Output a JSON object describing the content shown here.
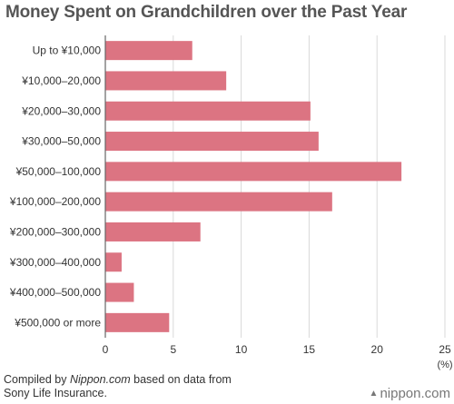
{
  "chart_data": {
    "type": "bar",
    "orientation": "horizontal",
    "title": "Money Spent on Grandchildren over the Past Year",
    "categories": [
      "Up to ¥10,000",
      "¥10,000–20,000",
      "¥20,000–30,000",
      "¥30,000–50,000",
      "¥50,000–100,000",
      "¥100,000–200,000",
      "¥200,000–300,000",
      "¥300,000–400,000",
      "¥400,000–500,000",
      "¥500,000 or more"
    ],
    "values": [
      6.4,
      8.9,
      15.1,
      15.7,
      21.8,
      16.7,
      7.0,
      1.2,
      2.1,
      4.7
    ],
    "xlim": [
      0,
      25
    ],
    "xticks": [
      "0",
      "5",
      "10",
      "15",
      "20",
      "25"
    ],
    "unit_label": "(%)",
    "bar_color": "#dc7482",
    "grid": true
  },
  "footer": {
    "source_prefix": "Compiled by ",
    "source_italic": "Nippon.com",
    "source_suffix": " based on data from",
    "source_line2": "Sony Life Insurance.",
    "brand": "nippon.com",
    "brand_icon": "triangles-icon"
  }
}
